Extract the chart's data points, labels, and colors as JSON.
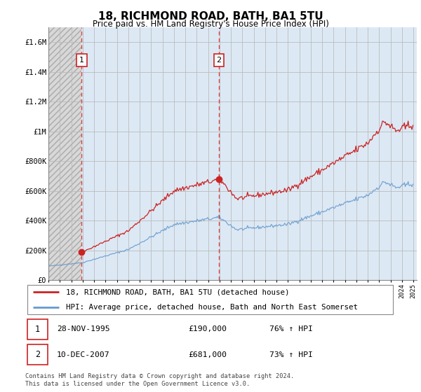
{
  "title": "18, RICHMOND ROAD, BATH, BA1 5TU",
  "subtitle": "Price paid vs. HM Land Registry's House Price Index (HPI)",
  "legend_label_red": "18, RICHMOND ROAD, BATH, BA1 5TU (detached house)",
  "legend_label_blue": "HPI: Average price, detached house, Bath and North East Somerset",
  "footnote": "Contains HM Land Registry data © Crown copyright and database right 2024.\nThis data is licensed under the Open Government Licence v3.0.",
  "table": [
    {
      "num": "1",
      "date": "28-NOV-1995",
      "price": "£190,000",
      "hpi": "76% ↑ HPI"
    },
    {
      "num": "2",
      "date": "10-DEC-2007",
      "price": "£681,000",
      "hpi": "73% ↑ HPI"
    }
  ],
  "sale1_year": 1995.92,
  "sale1_price": 190000,
  "sale2_year": 2007.95,
  "sale2_price": 681000,
  "ylim": [
    0,
    1700000
  ],
  "yticks": [
    0,
    200000,
    400000,
    600000,
    800000,
    1000000,
    1200000,
    1400000,
    1600000
  ],
  "ytick_labels": [
    "£0",
    "£200K",
    "£400K",
    "£600K",
    "£800K",
    "£1M",
    "£1.2M",
    "£1.4M",
    "£1.6M"
  ],
  "hpi_color": "#6699cc",
  "price_color": "#cc2222",
  "hatch_bg_color": "#d8d8d8",
  "light_blue_bg": "#dce9f5",
  "grid_color": "#bbbbbb",
  "bg_color": "#ffffff",
  "xlim_left": 1993.0,
  "xlim_right": 2025.3
}
